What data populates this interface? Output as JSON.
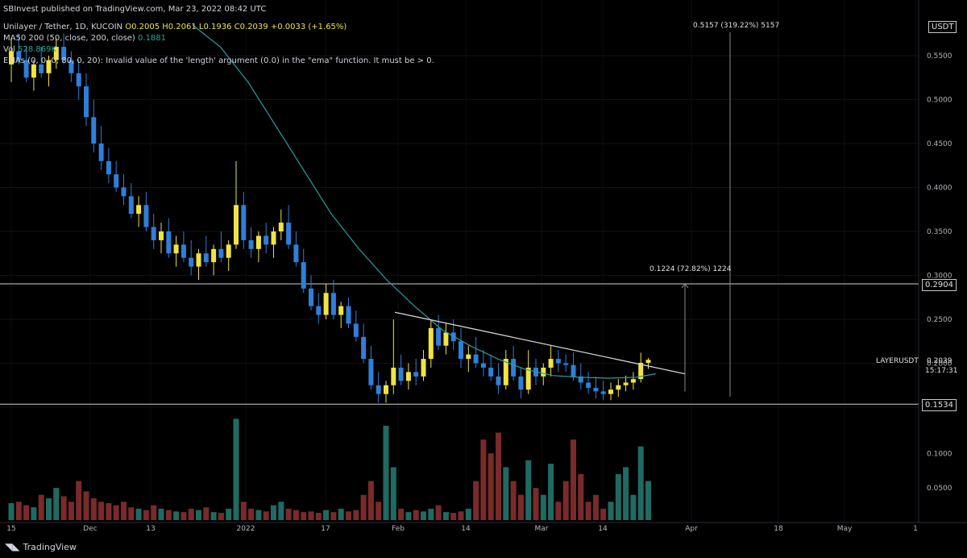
{
  "header": {
    "published": "SBInvest published on TradingView.com, Mar 23, 2022 08:42 UTC",
    "symbol_line": "Unilayer / Tether, 1D, KUCOIN",
    "ohlc": "O0.2005 H0.2061 L0.1936 C0.2039 +0.0033 (+1.65%)",
    "ma_label": "MA50 200 (50, close, 200, close)",
    "ma_value": "0.1881",
    "vol_label": "Vol",
    "vol_value": "528.869K",
    "ema_error": "EMAs (0, 0, 0, 80, 0, 20): Invalid value of the 'length' argument (0.0) in the \"ema\" function. It must be > 0."
  },
  "currency_box": "USDT",
  "ticker_label": "LAYERUSDT",
  "price_tag": "0.2039",
  "countdown": "15:17:31",
  "level_top": "0.2904",
  "level_bottom": "0.1534",
  "measure_top": "0.5157 (319.22%) 5157",
  "measure_mid": "0.1224 (72.82%) 1224",
  "footer_brand": "TradingView",
  "colors": {
    "up": "#f0e442",
    "down": "#2f7fd8",
    "ma": "#2a9d9d",
    "vol_up": "#1f6b63",
    "vol_down": "#7a2a2a",
    "trend": "#d0d0d0"
  },
  "chart_data": {
    "type": "candlestick",
    "price_axis": {
      "ticks": [
        "0.5500",
        "0.5000",
        "0.4500",
        "0.4000",
        "0.3500",
        "0.3000",
        "0.2500",
        "0.2000",
        "0.1500"
      ],
      "range": [
        0.13,
        0.59
      ]
    },
    "volume_axis": {
      "ticks": [
        "0.1000",
        "0.0500"
      ],
      "range": [
        0,
        0.16
      ]
    },
    "x_ticks": [
      "15",
      "Dec",
      "13",
      "2022",
      "17",
      "Feb",
      "14",
      "Mar",
      "14",
      "Apr",
      "18",
      "May",
      "1"
    ],
    "horizontal_levels": [
      0.2904,
      0.1534
    ],
    "trendline": {
      "from": [
        "2022-01-29",
        0.258
      ],
      "to": [
        "2022-03-27",
        0.188
      ]
    },
    "ma200_points": [
      [
        0.585,
        0
      ],
      [
        0.56,
        10
      ],
      [
        0.52,
        20
      ],
      [
        0.47,
        30
      ],
      [
        0.42,
        40
      ],
      [
        0.37,
        50
      ],
      [
        0.33,
        60
      ],
      [
        0.295,
        70
      ],
      [
        0.265,
        80
      ],
      [
        0.238,
        90
      ],
      [
        0.22,
        100
      ],
      [
        0.205,
        110
      ],
      [
        0.193,
        120
      ],
      [
        0.186,
        130
      ],
      [
        0.184,
        140
      ],
      [
        0.183,
        150
      ],
      [
        0.184,
        160
      ],
      [
        0.1881,
        167
      ]
    ],
    "candles": [
      [
        0.54,
        0.57,
        0.52,
        0.555
      ],
      [
        0.555,
        0.575,
        0.54,
        0.545
      ],
      [
        0.545,
        0.56,
        0.52,
        0.525
      ],
      [
        0.525,
        0.545,
        0.51,
        0.54
      ],
      [
        0.54,
        0.56,
        0.525,
        0.53
      ],
      [
        0.53,
        0.55,
        0.515,
        0.545
      ],
      [
        0.545,
        0.57,
        0.535,
        0.56
      ],
      [
        0.56,
        0.575,
        0.54,
        0.545
      ],
      [
        0.545,
        0.555,
        0.52,
        0.53
      ],
      [
        0.53,
        0.545,
        0.5,
        0.515
      ],
      [
        0.515,
        0.53,
        0.47,
        0.48
      ],
      [
        0.48,
        0.5,
        0.44,
        0.45
      ],
      [
        0.45,
        0.47,
        0.42,
        0.43
      ],
      [
        0.43,
        0.445,
        0.405,
        0.415
      ],
      [
        0.415,
        0.43,
        0.395,
        0.4
      ],
      [
        0.4,
        0.415,
        0.38,
        0.39
      ],
      [
        0.39,
        0.405,
        0.365,
        0.37
      ],
      [
        0.37,
        0.39,
        0.355,
        0.38
      ],
      [
        0.38,
        0.395,
        0.35,
        0.355
      ],
      [
        0.355,
        0.37,
        0.33,
        0.34
      ],
      [
        0.34,
        0.36,
        0.325,
        0.35
      ],
      [
        0.35,
        0.365,
        0.32,
        0.325
      ],
      [
        0.325,
        0.345,
        0.31,
        0.335
      ],
      [
        0.335,
        0.35,
        0.315,
        0.32
      ],
      [
        0.32,
        0.34,
        0.3,
        0.31
      ],
      [
        0.31,
        0.33,
        0.295,
        0.325
      ],
      [
        0.325,
        0.345,
        0.31,
        0.315
      ],
      [
        0.315,
        0.335,
        0.3,
        0.33
      ],
      [
        0.33,
        0.35,
        0.315,
        0.32
      ],
      [
        0.32,
        0.34,
        0.305,
        0.335
      ],
      [
        0.335,
        0.43,
        0.33,
        0.38
      ],
      [
        0.38,
        0.395,
        0.33,
        0.34
      ],
      [
        0.34,
        0.355,
        0.32,
        0.33
      ],
      [
        0.33,
        0.35,
        0.315,
        0.345
      ],
      [
        0.345,
        0.36,
        0.325,
        0.335
      ],
      [
        0.335,
        0.355,
        0.32,
        0.35
      ],
      [
        0.35,
        0.375,
        0.34,
        0.36
      ],
      [
        0.36,
        0.38,
        0.33,
        0.335
      ],
      [
        0.335,
        0.35,
        0.31,
        0.315
      ],
      [
        0.315,
        0.33,
        0.28,
        0.285
      ],
      [
        0.285,
        0.3,
        0.26,
        0.265
      ],
      [
        0.265,
        0.28,
        0.245,
        0.255
      ],
      [
        0.255,
        0.29,
        0.25,
        0.28
      ],
      [
        0.28,
        0.295,
        0.25,
        0.255
      ],
      [
        0.255,
        0.27,
        0.24,
        0.265
      ],
      [
        0.265,
        0.275,
        0.24,
        0.245
      ],
      [
        0.245,
        0.26,
        0.225,
        0.23
      ],
      [
        0.23,
        0.245,
        0.2,
        0.205
      ],
      [
        0.205,
        0.22,
        0.17,
        0.175
      ],
      [
        0.175,
        0.19,
        0.155,
        0.165
      ],
      [
        0.165,
        0.18,
        0.155,
        0.175
      ],
      [
        0.175,
        0.25,
        0.165,
        0.195
      ],
      [
        0.195,
        0.21,
        0.175,
        0.18
      ],
      [
        0.18,
        0.2,
        0.17,
        0.19
      ],
      [
        0.19,
        0.205,
        0.175,
        0.185
      ],
      [
        0.185,
        0.215,
        0.18,
        0.205
      ],
      [
        0.205,
        0.25,
        0.195,
        0.24
      ],
      [
        0.24,
        0.255,
        0.215,
        0.22
      ],
      [
        0.22,
        0.245,
        0.21,
        0.235
      ],
      [
        0.235,
        0.25,
        0.215,
        0.225
      ],
      [
        0.225,
        0.24,
        0.195,
        0.205
      ],
      [
        0.205,
        0.22,
        0.19,
        0.21
      ],
      [
        0.21,
        0.23,
        0.195,
        0.2
      ],
      [
        0.2,
        0.215,
        0.185,
        0.195
      ],
      [
        0.195,
        0.21,
        0.18,
        0.185
      ],
      [
        0.185,
        0.2,
        0.165,
        0.175
      ],
      [
        0.175,
        0.215,
        0.17,
        0.205
      ],
      [
        0.205,
        0.22,
        0.18,
        0.185
      ],
      [
        0.185,
        0.195,
        0.16,
        0.17
      ],
      [
        0.17,
        0.215,
        0.165,
        0.195
      ],
      [
        0.195,
        0.205,
        0.175,
        0.185
      ],
      [
        0.185,
        0.2,
        0.175,
        0.195
      ],
      [
        0.195,
        0.22,
        0.185,
        0.205
      ],
      [
        0.205,
        0.215,
        0.19,
        0.2
      ],
      [
        0.2,
        0.21,
        0.19,
        0.198
      ],
      [
        0.198,
        0.212,
        0.18,
        0.185
      ],
      [
        0.185,
        0.2,
        0.17,
        0.178
      ],
      [
        0.178,
        0.19,
        0.165,
        0.172
      ],
      [
        0.172,
        0.185,
        0.16,
        0.168
      ],
      [
        0.168,
        0.18,
        0.158,
        0.165
      ],
      [
        0.165,
        0.178,
        0.158,
        0.17
      ],
      [
        0.17,
        0.182,
        0.162,
        0.175
      ],
      [
        0.175,
        0.186,
        0.168,
        0.178
      ],
      [
        0.178,
        0.19,
        0.17,
        0.182
      ],
      [
        0.182,
        0.212,
        0.178,
        0.2005
      ],
      [
        0.2005,
        0.2061,
        0.1936,
        0.2039
      ]
    ],
    "volumes": [
      0.028,
      0.03,
      0.025,
      0.022,
      0.04,
      0.035,
      0.05,
      0.038,
      0.03,
      0.06,
      0.045,
      0.035,
      0.03,
      0.028,
      0.025,
      0.03,
      0.022,
      0.02,
      0.018,
      0.025,
      0.02,
      0.018,
      0.016,
      0.015,
      0.02,
      0.018,
      0.022,
      0.015,
      0.014,
      0.02,
      0.15,
      0.03,
      0.02,
      0.018,
      0.016,
      0.025,
      0.03,
      0.02,
      0.018,
      0.015,
      0.016,
      0.014,
      0.018,
      0.015,
      0.02,
      0.016,
      0.018,
      0.04,
      0.06,
      0.03,
      0.14,
      0.08,
      0.02,
      0.015,
      0.018,
      0.016,
      0.02,
      0.025,
      0.015,
      0.014,
      0.016,
      0.02,
      0.06,
      0.12,
      0.1,
      0.13,
      0.08,
      0.06,
      0.04,
      0.09,
      0.05,
      0.04,
      0.085,
      0.03,
      0.06,
      0.12,
      0.07,
      0.03,
      0.04,
      0.02,
      0.03,
      0.07,
      0.08,
      0.04,
      0.11,
      0.06
    ]
  }
}
